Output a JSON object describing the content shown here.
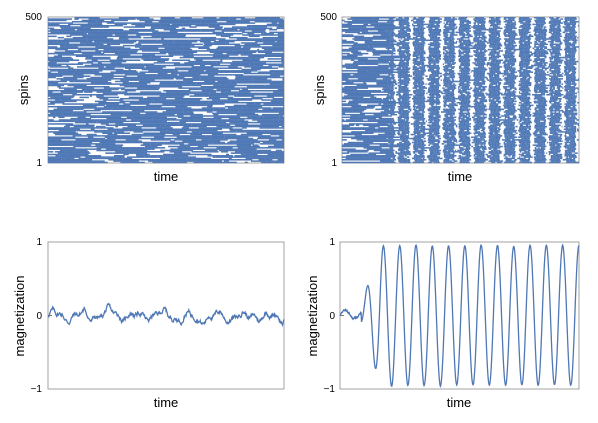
{
  "chart_data": [
    {
      "type": "heatmap",
      "panel": "top-left",
      "xlabel": "time",
      "ylabel": "spins",
      "y_ticks": [
        "1",
        "500"
      ],
      "ylim": [
        1,
        500
      ],
      "color": "#4f78b5",
      "pattern": "disordered horizontal streaks"
    },
    {
      "type": "heatmap",
      "panel": "top-right",
      "xlabel": "time",
      "ylabel": "spins",
      "y_ticks": [
        "1",
        "500"
      ],
      "ylim": [
        1,
        500
      ],
      "color": "#4f78b5",
      "pattern": "disordered start, then periodic vertical bands (13 periods)"
    },
    {
      "type": "line",
      "panel": "bottom-left",
      "xlabel": "time",
      "ylabel": "magnetization",
      "y_ticks": [
        "1",
        "0",
        "−1"
      ],
      "ylim": [
        -1,
        1
      ],
      "color": "#4f78b5",
      "description": "small fluctuations around 0 (amplitude about 0.1)"
    },
    {
      "type": "line",
      "panel": "bottom-right",
      "xlabel": "time",
      "ylabel": "magnetization",
      "y_ticks": [
        "1",
        "0",
        "−1"
      ],
      "ylim": [
        -1,
        1
      ],
      "color": "#4f78b5",
      "description": "near 0 initially, growing into oscillations with amplitude about 0.95",
      "oscillation_periods": 13
    }
  ]
}
